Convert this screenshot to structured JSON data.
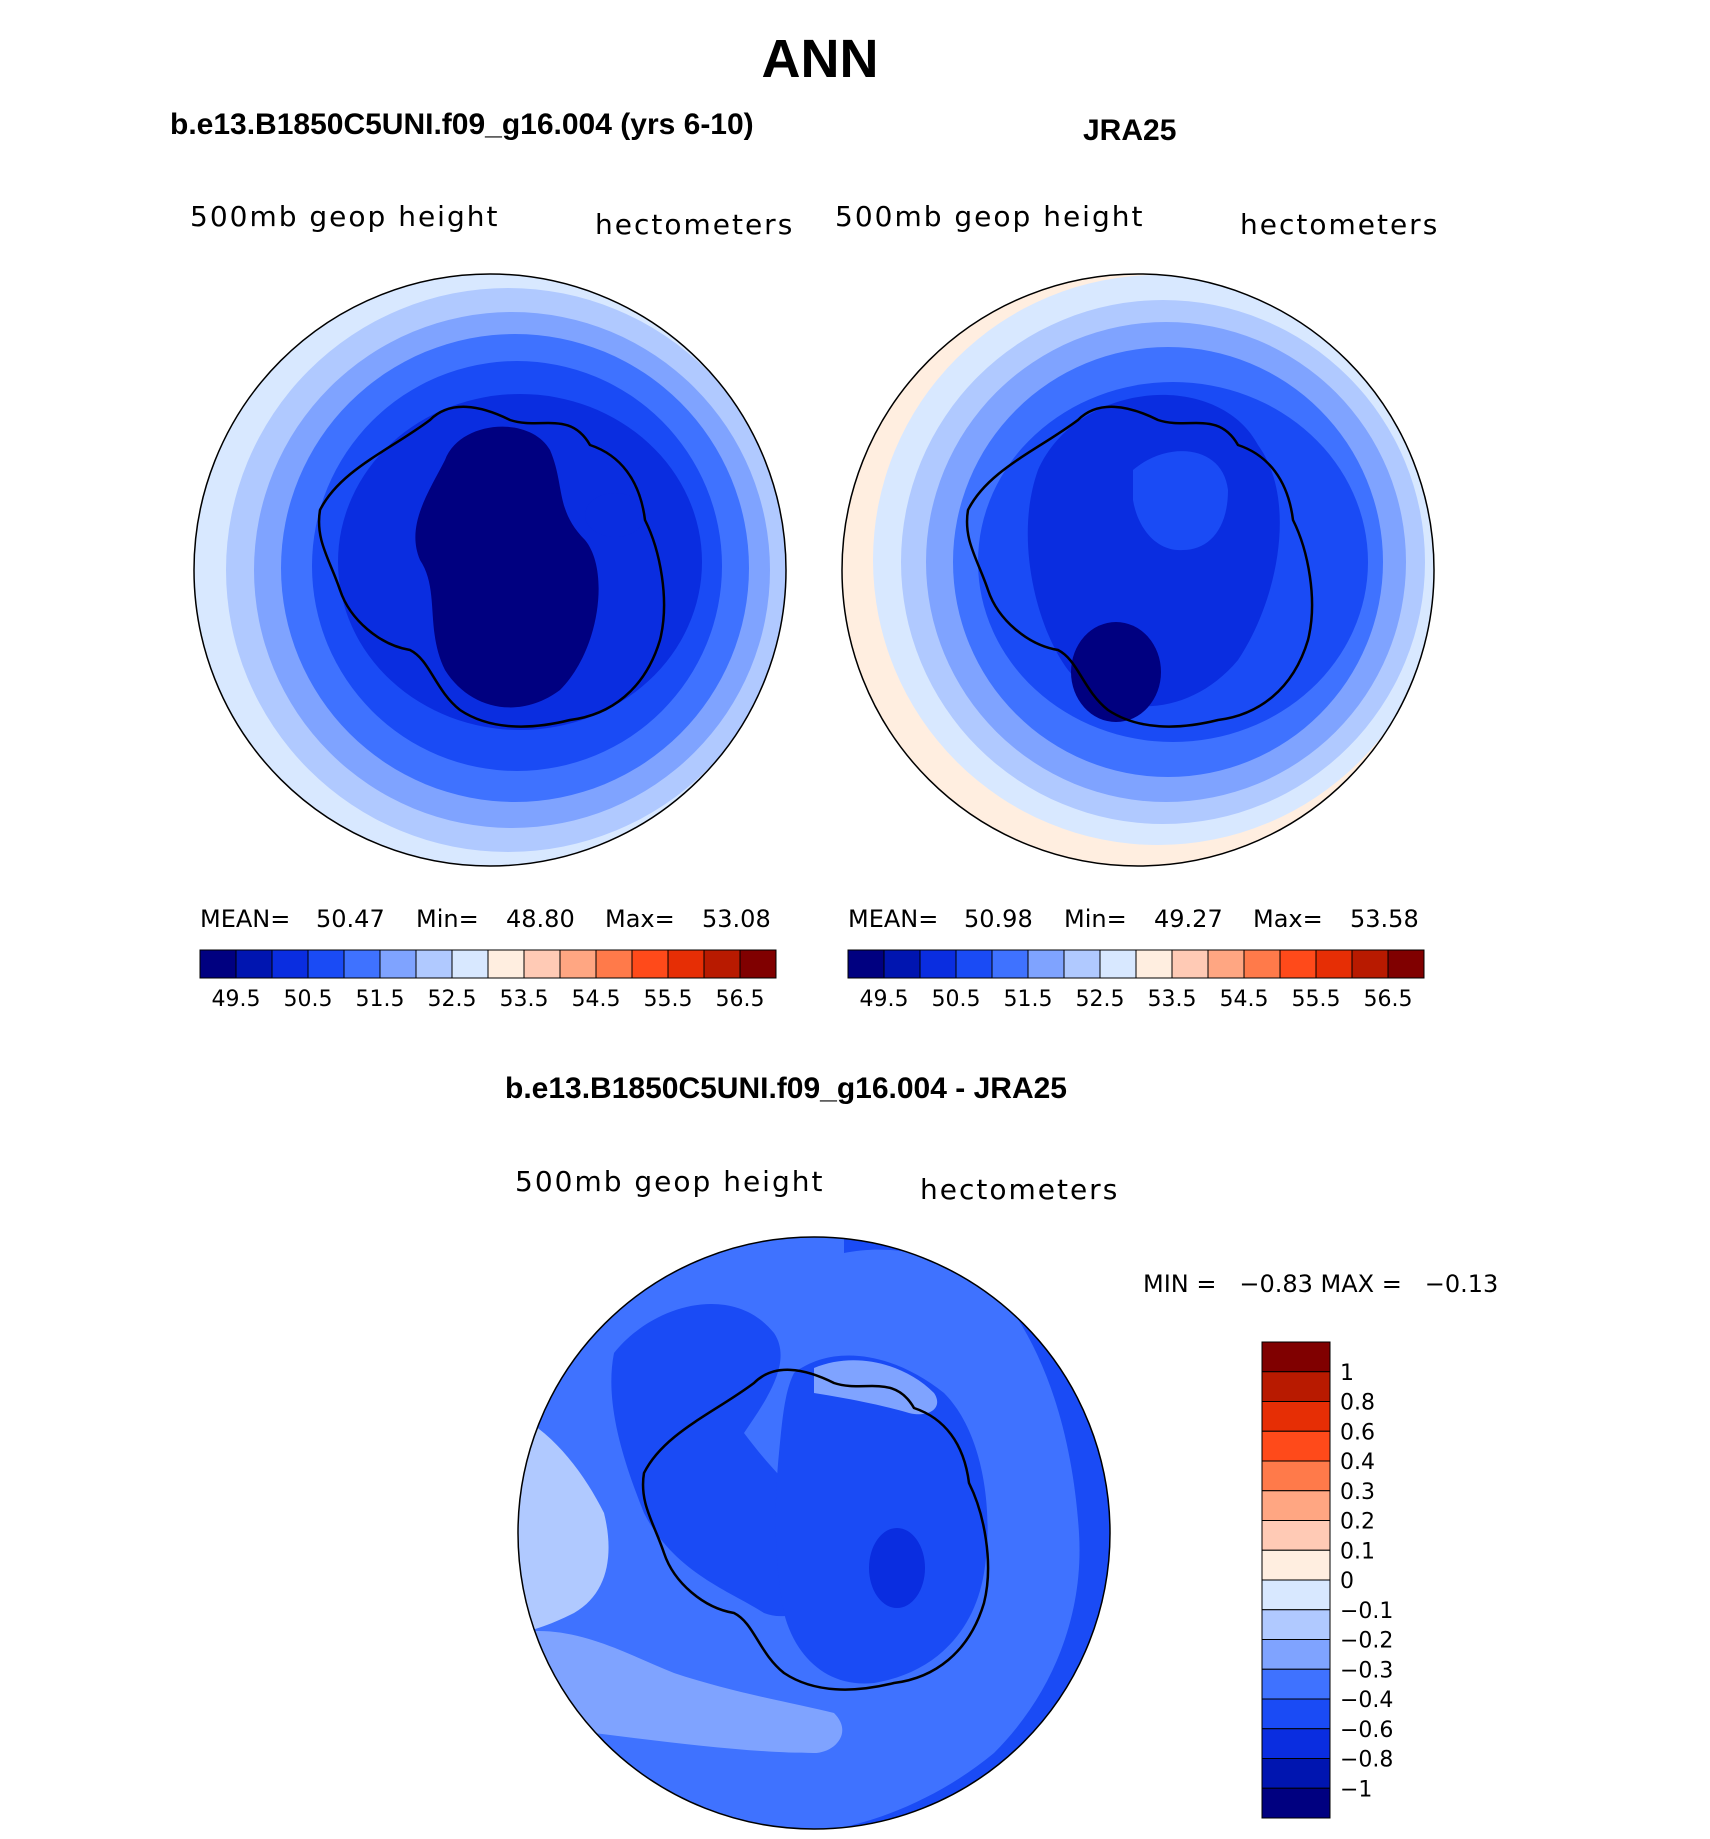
{
  "title": "ANN",
  "colors": {
    "ramp": [
      "#000080",
      "#0015b0",
      "#0a2de0",
      "#1a4bf5",
      "#3f72ff",
      "#7fa3ff",
      "#b0c9ff",
      "#d8e8ff",
      "#ffeee0",
      "#ffcab5",
      "#ffa682",
      "#ff7a4a",
      "#ff4a1a",
      "#e62e05",
      "#b81a00",
      "#800000"
    ],
    "diff_ramp": [
      "#000080",
      "#0015b0",
      "#0a2de0",
      "#1a4bf5",
      "#3f72ff",
      "#7fa3ff",
      "#b0c9ff",
      "#d8e8ff",
      "#ffeee0",
      "#ffcab5",
      "#ffa682",
      "#ff7a4a",
      "#ff4a1a",
      "#e62e05",
      "#b81a00",
      "#800000"
    ]
  },
  "panels": {
    "model": {
      "title": "b.e13.B1850C5UNI.f09_g16.004 (yrs 6-10)",
      "left_label": "500mb  geop  height",
      "right_label": "hectometers",
      "mean_label": "MEAN=",
      "mean": "50.47",
      "min_label": "Min=",
      "min": "48.80",
      "max_label": "Max=",
      "max": "53.08"
    },
    "obs": {
      "title": "JRA25",
      "left_label": "500mb  geop  height",
      "right_label": "hectometers",
      "mean_label": "MEAN=",
      "mean": "50.98",
      "min_label": "Min=",
      "min": "49.27",
      "max_label": "Max=",
      "max": "53.58"
    },
    "diff": {
      "title": "b.e13.B1850C5UNI.f09_g16.004 - JRA25",
      "left_label": "500mb  geop  height",
      "right_label": "hectometers",
      "minmax": "MIN =   −0.83 MAX =   −0.13"
    }
  },
  "chart_data": [
    {
      "type": "heatmap",
      "title": "b.e13.B1850C5UNI.f09_g16.004 (yrs 6-10)",
      "variable": "500mb geop height",
      "units": "hectometers",
      "projection": "south polar stereographic",
      "mean": 50.47,
      "min": 48.8,
      "max": 53.08,
      "levels": [
        49,
        49.5,
        50,
        50.5,
        51,
        51.5,
        52,
        52.5,
        53,
        53.5,
        54,
        54.5,
        55,
        55.5,
        56,
        56.5
      ],
      "ticklabels": [
        "49.5",
        "50.5",
        "51.5",
        "52.5",
        "53.5",
        "54.5",
        "55.5",
        "56.5"
      ]
    },
    {
      "type": "heatmap",
      "title": "JRA25",
      "variable": "500mb geop height",
      "units": "hectometers",
      "projection": "south polar stereographic",
      "mean": 50.98,
      "min": 49.27,
      "max": 53.58,
      "levels": [
        49,
        49.5,
        50,
        50.5,
        51,
        51.5,
        52,
        52.5,
        53,
        53.5,
        54,
        54.5,
        55,
        55.5,
        56,
        56.5
      ],
      "ticklabels": [
        "49.5",
        "50.5",
        "51.5",
        "52.5",
        "53.5",
        "54.5",
        "55.5",
        "56.5"
      ]
    },
    {
      "type": "heatmap",
      "title": "b.e13.B1850C5UNI.f09_g16.004 - JRA25",
      "variable": "500mb geop height",
      "units": "hectometers",
      "projection": "south polar stereographic",
      "min": -0.83,
      "max": -0.13,
      "ticklabels": [
        "1",
        "0.8",
        "0.6",
        "0.4",
        "0.3",
        "0.2",
        "0.1",
        "0",
        "−0.1",
        "−0.2",
        "−0.3",
        "−0.4",
        "−0.6",
        "−0.8",
        "−1"
      ]
    }
  ]
}
